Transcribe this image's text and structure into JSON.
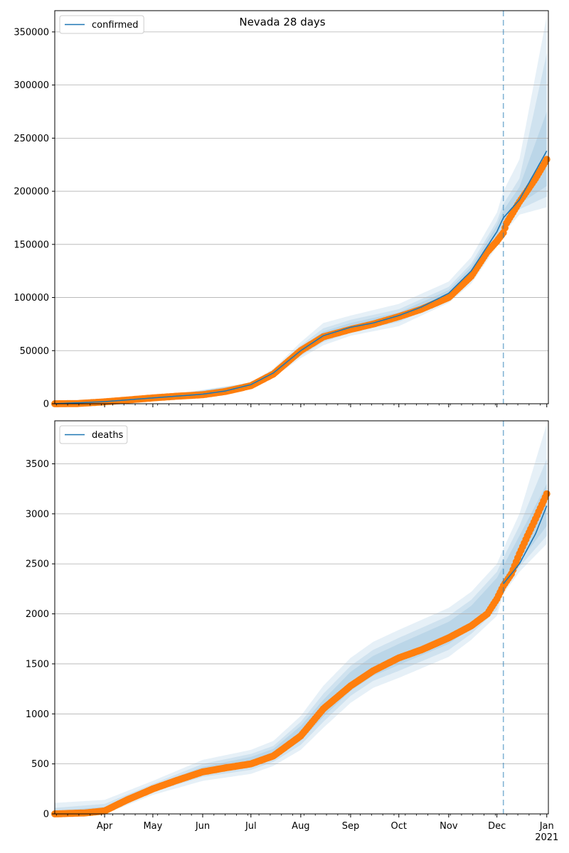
{
  "chart_data": [
    {
      "type": "line",
      "title": "Nevada 28 days",
      "series_name": "confirmed",
      "legend_position": "top-left",
      "grid": "horizontal",
      "ylim": [
        0,
        370000
      ],
      "yticks": [
        0,
        50000,
        100000,
        150000,
        200000,
        250000,
        300000,
        350000
      ],
      "xlim": [
        "2020-03-01",
        "2021-01-02"
      ],
      "forecast_start": "2020-12-05",
      "colors": {
        "model": "#1f77b4",
        "observed": "#ff7f0e",
        "band": "#1f77b4",
        "vline": "#1f77b4"
      },
      "model_line": {
        "x": [
          "2020-03-01",
          "2020-04-01",
          "2020-05-01",
          "2020-06-01",
          "2020-06-15",
          "2020-07-01",
          "2020-07-15",
          "2020-08-01",
          "2020-08-15",
          "2020-09-01",
          "2020-09-15",
          "2020-10-01",
          "2020-10-15",
          "2020-11-01",
          "2020-11-15",
          "2020-12-01",
          "2020-12-05",
          "2020-12-15",
          "2021-01-01"
        ],
        "y": [
          0,
          2000,
          5500,
          9000,
          12000,
          18000,
          29000,
          50000,
          64000,
          72000,
          76000,
          83000,
          91000,
          104000,
          125000,
          162000,
          175000,
          192000,
          238000
        ]
      },
      "observed": {
        "x": [
          "2020-03-01",
          "2020-03-15",
          "2020-04-01",
          "2020-04-15",
          "2020-05-01",
          "2020-05-15",
          "2020-06-01",
          "2020-06-15",
          "2020-07-01",
          "2020-07-15",
          "2020-08-01",
          "2020-08-15",
          "2020-09-01",
          "2020-09-15",
          "2020-10-01",
          "2020-10-15",
          "2020-11-01",
          "2020-11-15",
          "2020-11-25",
          "2020-12-01",
          "2020-12-05",
          "2020-12-07",
          "2020-12-15",
          "2020-12-25",
          "2021-01-01"
        ],
        "y": [
          0,
          200,
          1800,
          3500,
          5500,
          7000,
          8500,
          11500,
          17000,
          28000,
          50000,
          63000,
          70000,
          75000,
          82000,
          89000,
          100000,
          120000,
          143000,
          153000,
          161000,
          170000,
          190000,
          212000,
          230000
        ]
      },
      "bands": [
        {
          "x": [
            "2020-03-01",
            "2020-05-01",
            "2020-07-01",
            "2020-07-15",
            "2020-08-01",
            "2020-08-15",
            "2020-09-01",
            "2020-10-01",
            "2020-11-01",
            "2020-11-15",
            "2020-12-01",
            "2020-12-05",
            "2020-12-15",
            "2021-01-01"
          ],
          "upper": [
            0,
            6000,
            20000,
            33000,
            58000,
            76000,
            83000,
            94000,
            115000,
            138000,
            180000,
            200000,
            230000,
            365000
          ],
          "lower": [
            0,
            5000,
            16000,
            25000,
            43000,
            55000,
            64000,
            73000,
            95000,
            113000,
            148000,
            160000,
            178000,
            185000
          ]
        },
        {
          "x": [
            "2020-03-01",
            "2020-05-01",
            "2020-07-01",
            "2020-07-15",
            "2020-08-01",
            "2020-08-15",
            "2020-09-01",
            "2020-10-01",
            "2020-11-01",
            "2020-11-15",
            "2020-12-01",
            "2020-12-05",
            "2020-12-15",
            "2021-01-01"
          ],
          "upper": [
            0,
            5800,
            19500,
            31500,
            55000,
            71000,
            79000,
            89000,
            110000,
            132000,
            172000,
            188000,
            212000,
            330000
          ],
          "lower": [
            0,
            5200,
            16500,
            26500,
            45000,
            58000,
            67000,
            77000,
            98000,
            117000,
            153000,
            165000,
            183000,
            195000
          ]
        },
        {
          "x": [
            "2020-03-01",
            "2020-05-01",
            "2020-07-01",
            "2020-07-15",
            "2020-08-01",
            "2020-08-15",
            "2020-09-01",
            "2020-10-01",
            "2020-11-01",
            "2020-11-15",
            "2020-12-01",
            "2020-12-05",
            "2020-12-15",
            "2021-01-01"
          ],
          "upper": [
            0,
            5600,
            19000,
            30500,
            53000,
            68000,
            76000,
            86000,
            107000,
            129000,
            168000,
            182000,
            204000,
            275000
          ],
          "lower": [
            0,
            5400,
            17000,
            27500,
            47000,
            60000,
            69000,
            80000,
            101000,
            121000,
            158000,
            170000,
            188000,
            205000
          ]
        }
      ]
    },
    {
      "type": "line",
      "series_name": "deaths",
      "legend_position": "top-left",
      "grid": "horizontal",
      "ylim": [
        0,
        3930
      ],
      "yticks": [
        0,
        500,
        1000,
        1500,
        2000,
        2500,
        3000,
        3500
      ],
      "xlim": [
        "2020-03-01",
        "2021-01-02"
      ],
      "forecast_start": "2020-12-05",
      "x_tick_labels": [
        {
          "date": "2020-04-01",
          "label": "Apr"
        },
        {
          "date": "2020-05-01",
          "label": "May"
        },
        {
          "date": "2020-06-01",
          "label": "Jun"
        },
        {
          "date": "2020-07-01",
          "label": "Jul"
        },
        {
          "date": "2020-08-01",
          "label": "Aug"
        },
        {
          "date": "2020-09-01",
          "label": "Sep"
        },
        {
          "date": "2020-10-01",
          "label": "Oct"
        },
        {
          "date": "2020-11-01",
          "label": "Nov"
        },
        {
          "date": "2020-12-01",
          "label": "Dec"
        },
        {
          "date": "2021-01-01",
          "label": "Jan"
        }
      ],
      "year_label": "2021",
      "colors": {
        "model": "#1f77b4",
        "observed": "#ff7f0e",
        "band": "#1f77b4",
        "vline": "#1f77b4"
      },
      "model_line": {
        "x": [
          "2020-12-05",
          "2020-12-15",
          "2020-12-25",
          "2021-01-01"
        ],
        "y": [
          2300,
          2500,
          2800,
          3080
        ]
      },
      "observed": {
        "x": [
          "2020-03-01",
          "2020-03-20",
          "2020-04-01",
          "2020-04-15",
          "2020-05-01",
          "2020-05-15",
          "2020-06-01",
          "2020-06-15",
          "2020-07-01",
          "2020-07-15",
          "2020-08-01",
          "2020-08-15",
          "2020-09-01",
          "2020-09-15",
          "2020-10-01",
          "2020-10-15",
          "2020-11-01",
          "2020-11-15",
          "2020-11-25",
          "2020-12-01",
          "2020-12-05",
          "2020-12-10",
          "2020-12-15",
          "2020-12-20",
          "2020-12-25",
          "2021-01-01"
        ],
        "y": [
          0,
          10,
          30,
          140,
          250,
          330,
          420,
          460,
          500,
          580,
          780,
          1050,
          1280,
          1430,
          1560,
          1640,
          1760,
          1880,
          2000,
          2150,
          2280,
          2400,
          2600,
          2780,
          2950,
          3200
        ]
      },
      "bands": [
        {
          "x": [
            "2020-03-01",
            "2020-04-01",
            "2020-05-01",
            "2020-06-01",
            "2020-07-01",
            "2020-07-15",
            "2020-08-01",
            "2020-08-15",
            "2020-09-01",
            "2020-09-15",
            "2020-10-01",
            "2020-11-01",
            "2020-11-15",
            "2020-12-01",
            "2020-12-05",
            "2020-12-15",
            "2021-01-01"
          ],
          "upper": [
            110,
            140,
            330,
            540,
            640,
            730,
            980,
            1280,
            1560,
            1720,
            1840,
            2060,
            2220,
            2500,
            2650,
            3000,
            3900
          ],
          "lower": [
            0,
            0,
            190,
            330,
            400,
            480,
            640,
            860,
            1110,
            1260,
            1360,
            1570,
            1740,
            1980,
            2200,
            2420,
            2700
          ]
        },
        {
          "x": [
            "2020-03-01",
            "2020-04-01",
            "2020-05-01",
            "2020-06-01",
            "2020-07-01",
            "2020-07-15",
            "2020-08-01",
            "2020-08-15",
            "2020-09-01",
            "2020-09-15",
            "2020-10-01",
            "2020-11-01",
            "2020-11-15",
            "2020-12-01",
            "2020-12-05",
            "2020-12-15",
            "2021-01-01"
          ],
          "upper": [
            60,
            100,
            300,
            500,
            600,
            680,
            920,
            1200,
            1480,
            1640,
            1760,
            1980,
            2140,
            2420,
            2560,
            2880,
            3550
          ],
          "lower": [
            0,
            20,
            220,
            370,
            440,
            520,
            690,
            920,
            1180,
            1330,
            1430,
            1640,
            1800,
            2040,
            2240,
            2470,
            2780
          ]
        },
        {
          "x": [
            "2020-03-01",
            "2020-04-01",
            "2020-05-01",
            "2020-06-01",
            "2020-07-01",
            "2020-07-15",
            "2020-08-01",
            "2020-08-15",
            "2020-09-01",
            "2020-09-15",
            "2020-10-01",
            "2020-11-01",
            "2020-11-15",
            "2020-12-01",
            "2020-12-05",
            "2020-12-15",
            "2021-01-01"
          ],
          "upper": [
            30,
            70,
            280,
            470,
            570,
            650,
            880,
            1140,
            1420,
            1580,
            1700,
            1920,
            2080,
            2360,
            2480,
            2780,
            3300
          ],
          "lower": [
            0,
            40,
            240,
            400,
            470,
            550,
            730,
            970,
            1230,
            1380,
            1490,
            1700,
            1860,
            2100,
            2280,
            2520,
            2880
          ]
        }
      ]
    }
  ]
}
